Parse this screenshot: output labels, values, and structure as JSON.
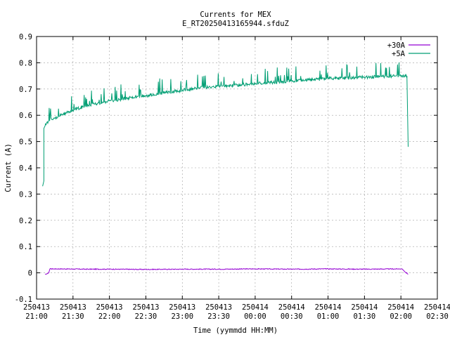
{
  "chart_data": {
    "type": "line",
    "title": "Currents for MEX",
    "subtitle": "E_RT20250413165944.sfduZ",
    "xlabel": "Time (yymmdd HH:MM)",
    "ylabel": "Current (A)",
    "ylim": [
      -0.1,
      0.9
    ],
    "yticks": [
      "-0.1",
      "0",
      "0.1",
      "0.2",
      "0.3",
      "0.4",
      "0.5",
      "0.6",
      "0.7",
      "0.8",
      "0.9"
    ],
    "xlim": [
      "21:00",
      "02:30"
    ],
    "xticks": [
      {
        "date": "250413",
        "time": "21:00"
      },
      {
        "date": "250413",
        "time": "21:30"
      },
      {
        "date": "250413",
        "time": "22:00"
      },
      {
        "date": "250413",
        "time": "22:30"
      },
      {
        "date": "250413",
        "time": "23:00"
      },
      {
        "date": "250413",
        "time": "23:30"
      },
      {
        "date": "250414",
        "time": "00:00"
      },
      {
        "date": "250414",
        "time": "00:30"
      },
      {
        "date": "250414",
        "time": "01:00"
      },
      {
        "date": "250414",
        "time": "01:30"
      },
      {
        "date": "250414",
        "time": "02:00"
      },
      {
        "date": "250414",
        "time": "02:30"
      }
    ],
    "grid": true,
    "legend_position": "top-right",
    "series": [
      {
        "name": "+30A",
        "color": "#9400d3",
        "x": [
          "21:07",
          "21:08",
          "21:10",
          "21:11",
          "21:20",
          "21:40",
          "22:00",
          "22:30",
          "23:00",
          "23:30",
          "00:00",
          "00:30",
          "01:00",
          "01:30",
          "02:00",
          "02:01",
          "02:03",
          "02:06"
        ],
        "y": [
          -0.005,
          -0.005,
          0.0,
          0.015,
          0.015,
          0.014,
          0.014,
          0.013,
          0.014,
          0.014,
          0.015,
          0.014,
          0.015,
          0.014,
          0.015,
          0.015,
          0.005,
          -0.005
        ]
      },
      {
        "name": "+5A",
        "color": "#009e73",
        "x": [
          "21:05",
          "21:06",
          "21:06",
          "21:07",
          "21:10",
          "21:15",
          "21:20",
          "21:30",
          "21:40",
          "21:50",
          "22:00",
          "22:15",
          "22:30",
          "22:45",
          "23:00",
          "23:15",
          "23:30",
          "23:45",
          "00:00",
          "00:15",
          "00:30",
          "00:45",
          "01:00",
          "01:15",
          "01:30",
          "01:45",
          "02:00",
          "02:05",
          "02:05",
          "02:06"
        ],
        "y": [
          0.33,
          0.35,
          0.55,
          0.56,
          0.58,
          0.59,
          0.6,
          0.62,
          0.635,
          0.645,
          0.655,
          0.665,
          0.675,
          0.685,
          0.695,
          0.705,
          0.71,
          0.715,
          0.72,
          0.725,
          0.73,
          0.735,
          0.74,
          0.742,
          0.745,
          0.748,
          0.75,
          0.75,
          0.74,
          0.48
        ]
      }
    ]
  }
}
